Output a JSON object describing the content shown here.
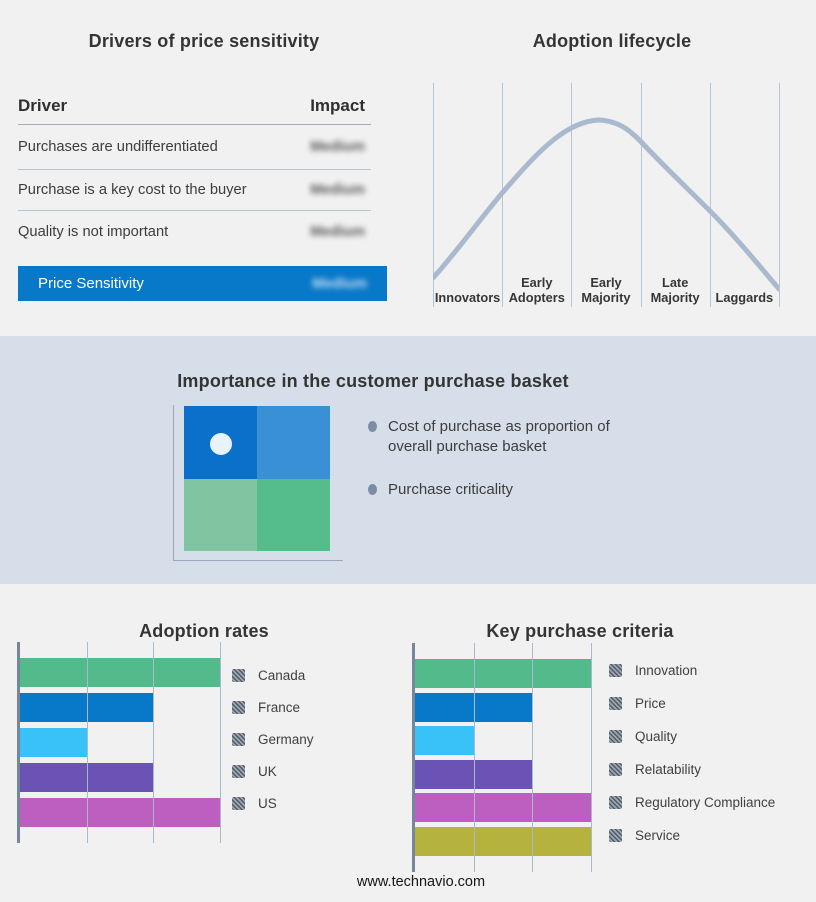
{
  "footer": {
    "text": "www.technavio.com"
  },
  "drivers_panel": {
    "title": "Drivers of price sensitivity",
    "header": {
      "driver": "Driver",
      "impact": "Impact"
    },
    "rows": [
      {
        "driver": "Purchases are undifferentiated",
        "impact": "Medium"
      },
      {
        "driver": "Purchase is a key cost to the buyer",
        "impact": "Medium"
      },
      {
        "driver": "Quality is not important",
        "impact": "Medium"
      }
    ],
    "highlight": {
      "label": "Price Sensitivity",
      "impact": "Medium"
    },
    "highlight_color": "#0878c8"
  },
  "basket_panel": {
    "title": "Importance in the customer purchase basket",
    "bullets": [
      "Cost of purchase as proportion of overall purchase basket",
      "Purchase criticality"
    ],
    "quadrants": {
      "top_left": "#0b70c9",
      "top_right": "#3990d5",
      "bottom_left": "#80c4a2",
      "bottom_right": "#55bd8c"
    },
    "dot_color": "#e9f3fb",
    "background": "#d5dee9"
  },
  "chart_data": [
    {
      "id": "adoption_lifecycle",
      "type": "line",
      "title": "Adoption lifecycle",
      "stages": [
        "Innovators",
        "Early Adopters",
        "Early Majority",
        "Late Majority",
        "Laggards"
      ],
      "curve": "bell",
      "peak_stage": "Early Majority",
      "curve_color": "#a9b9ce",
      "gridline_color": "#b6c4d8",
      "grid": true,
      "legend_position": "none"
    },
    {
      "id": "adoption_rates",
      "type": "bar",
      "title": "Adoption rates",
      "categories": [
        "Canada",
        "France",
        "Germany",
        "UK",
        "US"
      ],
      "values": [
        3,
        2,
        1,
        2,
        3
      ],
      "xlim": [
        0,
        3
      ],
      "colors": [
        "#53bb8b",
        "#0878c8",
        "#38c2f8",
        "#6a53b4",
        "#bd5fc0"
      ],
      "grid": true,
      "legend_position": "right"
    },
    {
      "id": "key_purchase_criteria",
      "type": "bar",
      "title": "Key purchase criteria",
      "categories": [
        "Innovation",
        "Price",
        "Quality",
        "Relatability",
        "Regulatory Compliance",
        "Service"
      ],
      "values": [
        3,
        2,
        1,
        2,
        3,
        3
      ],
      "xlim": [
        0,
        3
      ],
      "colors": [
        "#53bb8b",
        "#0878c8",
        "#38c2f8",
        "#6a53b4",
        "#bd5fc0",
        "#b5b23e"
      ],
      "grid": true,
      "legend_position": "right"
    }
  ]
}
